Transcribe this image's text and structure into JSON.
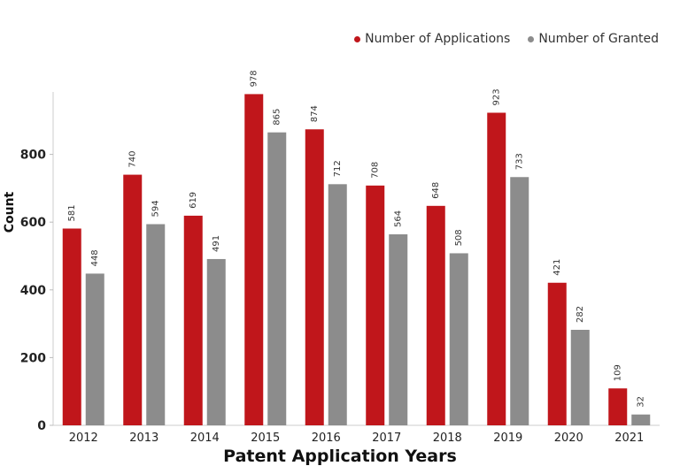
{
  "chart_data": {
    "type": "bar",
    "title": "",
    "xlabel": "Patent Application Years",
    "ylabel": "Count",
    "ylim": [
      0,
      1000
    ],
    "yticks": [
      0,
      200,
      400,
      600,
      800
    ],
    "legend_position": "top-right",
    "categories": [
      "2012",
      "2013",
      "2014",
      "2015",
      "2016",
      "2017",
      "2018",
      "2019",
      "2020",
      "2021"
    ],
    "series": [
      {
        "name": "Number of Applications",
        "color": "#c0161b",
        "values": [
          581,
          740,
          619,
          978,
          874,
          708,
          648,
          923,
          421,
          109
        ]
      },
      {
        "name": "Number of Granted",
        "color": "#8c8c8c",
        "values": [
          448,
          594,
          491,
          865,
          712,
          564,
          508,
          733,
          282,
          32
        ]
      }
    ]
  }
}
